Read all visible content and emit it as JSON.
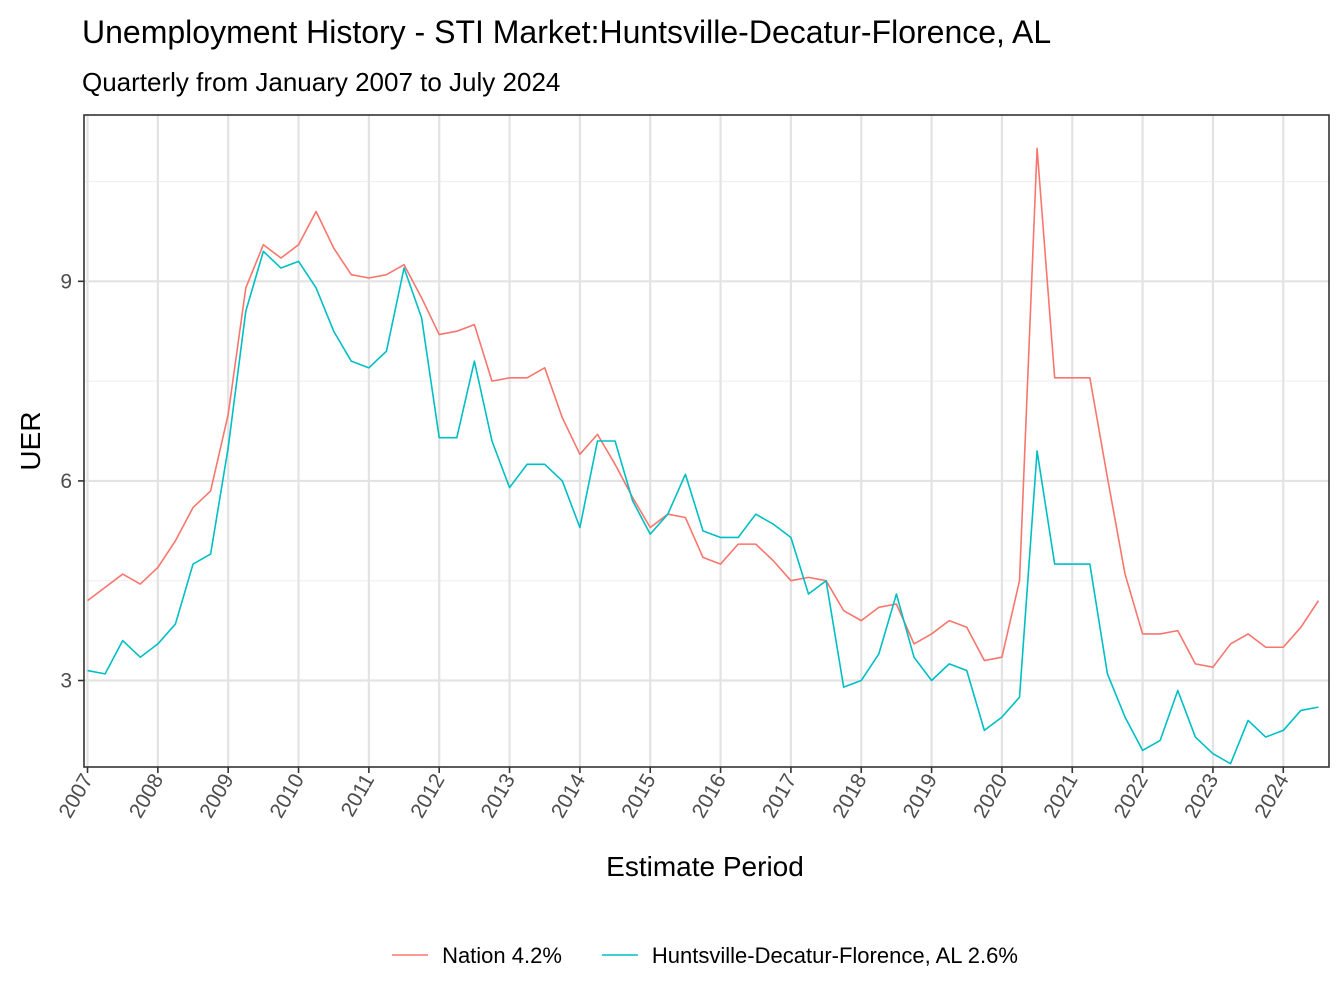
{
  "chart_data": {
    "type": "line",
    "title": "Unemployment History - STI Market:Huntsville-Decatur-Florence, AL",
    "subtitle": "Quarterly from January 2007 to July 2024",
    "xlabel": "Estimate Period",
    "ylabel": "UER",
    "xlim": [
      2006.95,
      2024.65
    ],
    "ylim": [
      1.7,
      11.5
    ],
    "x_ticks": [
      2007,
      2008,
      2009,
      2010,
      2011,
      2012,
      2013,
      2014,
      2015,
      2016,
      2017,
      2018,
      2019,
      2020,
      2021,
      2022,
      2023,
      2024
    ],
    "x_tick_labels": [
      "2007",
      "2008",
      "2009",
      "2010",
      "2011",
      "2012",
      "2013",
      "2014",
      "2015",
      "2016",
      "2017",
      "2018",
      "2019",
      "2020",
      "2021",
      "2022",
      "2023",
      "2024"
    ],
    "y_ticks": [
      3,
      6,
      9
    ],
    "y_tick_labels": [
      "3",
      "6",
      "9"
    ],
    "y_minor_ticks": [
      1.5,
      4.5,
      7.5,
      10.5
    ],
    "grid": true,
    "legend_position": "bottom",
    "x": [
      "2007-01",
      "2007-04",
      "2007-07",
      "2007-10",
      "2008-01",
      "2008-04",
      "2008-07",
      "2008-10",
      "2009-01",
      "2009-04",
      "2009-07",
      "2009-10",
      "2010-01",
      "2010-04",
      "2010-07",
      "2010-10",
      "2011-01",
      "2011-04",
      "2011-07",
      "2011-10",
      "2012-01",
      "2012-04",
      "2012-07",
      "2012-10",
      "2013-01",
      "2013-04",
      "2013-07",
      "2013-10",
      "2014-01",
      "2014-04",
      "2014-07",
      "2014-10",
      "2015-01",
      "2015-04",
      "2015-07",
      "2015-10",
      "2016-01",
      "2016-04",
      "2016-07",
      "2016-10",
      "2017-01",
      "2017-04",
      "2017-07",
      "2017-10",
      "2018-01",
      "2018-04",
      "2018-07",
      "2018-10",
      "2019-01",
      "2019-04",
      "2019-07",
      "2019-10",
      "2020-01",
      "2020-04",
      "2020-07",
      "2020-10",
      "2021-01",
      "2021-04",
      "2021-07",
      "2021-10",
      "2022-01",
      "2022-04",
      "2022-07",
      "2022-10",
      "2023-01",
      "2023-04",
      "2023-07",
      "2023-10",
      "2024-01",
      "2024-04",
      "2024-07"
    ],
    "series": [
      {
        "name": "Nation 4.2%",
        "color": "#F8766D",
        "values": [
          4.2,
          4.4,
          4.6,
          4.45,
          4.7,
          5.1,
          5.6,
          5.85,
          7.0,
          8.9,
          9.55,
          9.35,
          9.55,
          10.05,
          9.5,
          9.1,
          9.05,
          9.1,
          9.25,
          8.75,
          8.2,
          8.25,
          8.35,
          7.5,
          7.55,
          7.55,
          7.7,
          6.95,
          6.4,
          6.7,
          6.25,
          5.75,
          5.3,
          5.5,
          5.45,
          4.85,
          4.75,
          5.05,
          5.05,
          4.8,
          4.5,
          4.55,
          4.5,
          4.05,
          3.9,
          4.1,
          4.15,
          3.55,
          3.7,
          3.9,
          3.8,
          3.3,
          3.35,
          4.5,
          11.0,
          7.55,
          7.55,
          7.55,
          6.05,
          4.6,
          3.7,
          3.7,
          3.75,
          3.25,
          3.2,
          3.55,
          3.7,
          3.5,
          3.5,
          3.8,
          4.2
        ]
      },
      {
        "name": "Huntsville-Decatur-Florence, AL 2.6%",
        "color": "#00BFC4",
        "values": [
          3.15,
          3.1,
          3.6,
          3.35,
          3.55,
          3.85,
          4.75,
          4.9,
          6.5,
          8.55,
          9.45,
          9.2,
          9.3,
          8.9,
          8.25,
          7.8,
          7.7,
          7.95,
          9.2,
          8.45,
          6.65,
          6.65,
          7.8,
          6.6,
          5.9,
          6.25,
          6.25,
          6.0,
          5.3,
          6.6,
          6.6,
          5.7,
          5.2,
          5.5,
          6.1,
          5.25,
          5.15,
          5.15,
          5.5,
          5.35,
          5.15,
          4.3,
          4.5,
          2.9,
          3.0,
          3.4,
          4.3,
          3.35,
          3.0,
          3.25,
          3.15,
          2.25,
          2.45,
          2.75,
          6.45,
          4.75,
          4.75,
          4.75,
          3.1,
          2.45,
          1.95,
          2.1,
          2.85,
          2.15,
          1.9,
          1.75,
          2.4,
          2.15,
          2.25,
          2.55,
          2.6
        ]
      }
    ]
  }
}
